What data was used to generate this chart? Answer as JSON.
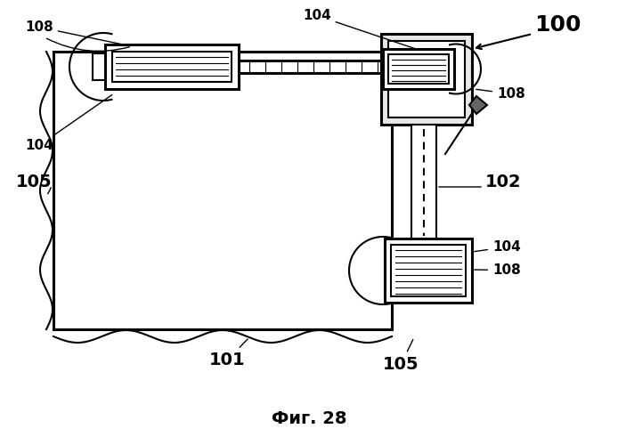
{
  "bg_color": "#ffffff",
  "fig_label": "Фиг. 28",
  "lc": "#000000",
  "lw": 1.5,
  "tlw": 2.2
}
